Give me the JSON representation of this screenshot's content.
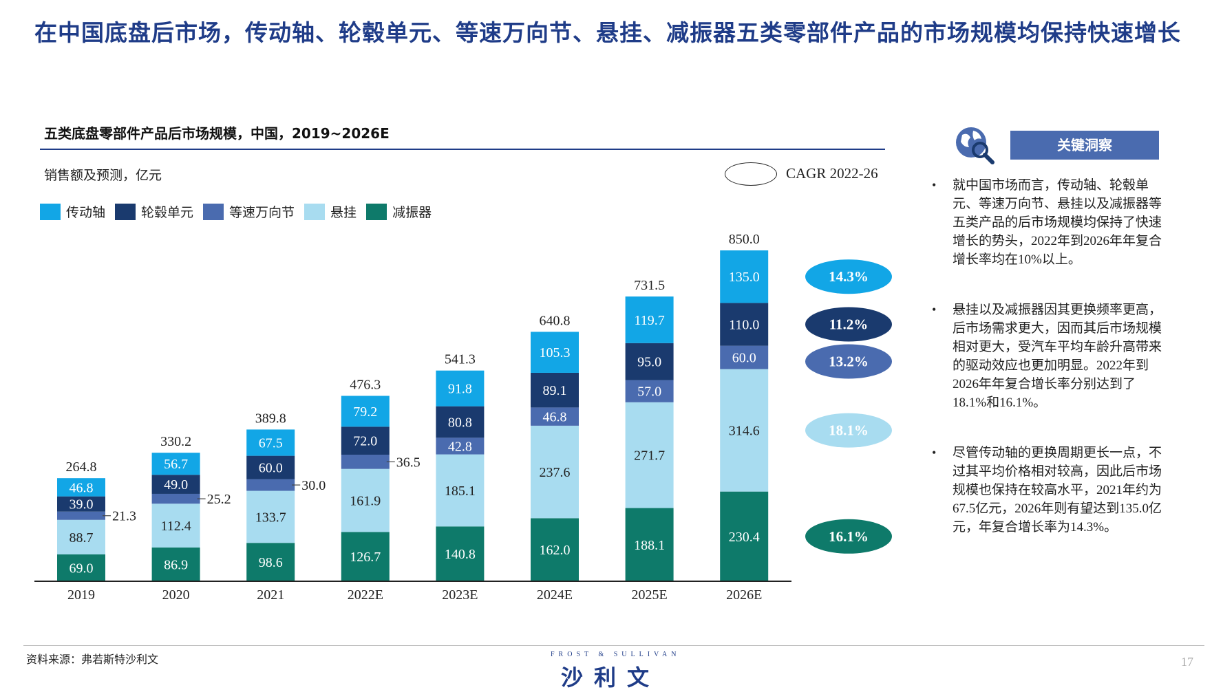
{
  "page": {
    "title": "在中国底盘后市场，传动轴、轮毂单元、等速万向节、悬挂、减振器五类零部件产品的市场规模均保持快速增长",
    "chart_title": "五类底盘零部件产品后市场规模，中国，2019~2026E",
    "unit_label": "销售额及预测，亿元",
    "cagr_label": "CAGR 2022-26",
    "insights_header": "关键洞察",
    "insights": [
      "就中国市场而言，传动轴、轮毂单元、等速万向节、悬挂以及减振器等五类产品的后市场规模均保持了快速增长的势头，2022年到2026年年复合增长率均在10%以上。",
      "悬挂以及减振器因其更换频率更高，后市场需求更大，因而其后市场规模相对更大，受汽车平均车龄升高带来的驱动效应也更加明显。2022年到2026年年复合增长率分别达到了18.1%和16.1%。",
      "尽管传动轴的更换周期更长一点，不过其平均价格相对较高，因此后市场规模也保持在较高水平，2021年约为67.5亿元，2026年则有望达到135.0亿元，年复合增长率为14.3%。"
    ],
    "source": "资料来源：弗若斯特沙利文",
    "logo_en": "FROST & SULLIVAN",
    "logo_cn": "沙利文",
    "page_number": "17"
  },
  "chart_data": {
    "type": "bar",
    "stacked": true,
    "categories": [
      "2019",
      "2020",
      "2021",
      "2022E",
      "2023E",
      "2024E",
      "2025E",
      "2026E"
    ],
    "series": [
      {
        "name": "减振器",
        "color": "#0e7a6a",
        "values": [
          69.0,
          86.9,
          98.6,
          126.7,
          140.8,
          162.0,
          188.1,
          230.4
        ],
        "cagr": "16.1%",
        "cagr_text_color": "#ffffff"
      },
      {
        "name": "悬挂",
        "color": "#a8dcf0",
        "values": [
          88.7,
          112.4,
          133.7,
          161.9,
          185.1,
          237.6,
          271.7,
          314.6
        ],
        "cagr": "18.1%",
        "cagr_text_color": "#ffffff"
      },
      {
        "name": "等速万向节",
        "color": "#4a6baf",
        "values": [
          21.3,
          25.2,
          30.0,
          36.5,
          42.8,
          46.8,
          57.0,
          60.0
        ],
        "cagr": "13.2%",
        "cagr_text_color": "#ffffff"
      },
      {
        "name": "轮毂单元",
        "color": "#1a3a6e",
        "values": [
          39.0,
          49.0,
          60.0,
          72.0,
          80.8,
          89.1,
          95.0,
          110.0
        ],
        "cagr": "11.2%",
        "cagr_text_color": "#ffffff"
      },
      {
        "name": "传动轴",
        "color": "#12a6e6",
        "values": [
          46.8,
          56.7,
          67.5,
          79.2,
          91.8,
          105.3,
          119.7,
          135.0
        ],
        "cagr": "14.3%",
        "cagr_text_color": "#ffffff"
      }
    ],
    "totals": [
      264.8,
      330.2,
      389.8,
      476.3,
      541.3,
      640.8,
      731.5,
      850.0
    ],
    "legend_order": [
      "传动轴",
      "轮毂单元",
      "等速万向节",
      "悬挂",
      "减振器"
    ],
    "ylim": [
      0,
      850
    ]
  }
}
